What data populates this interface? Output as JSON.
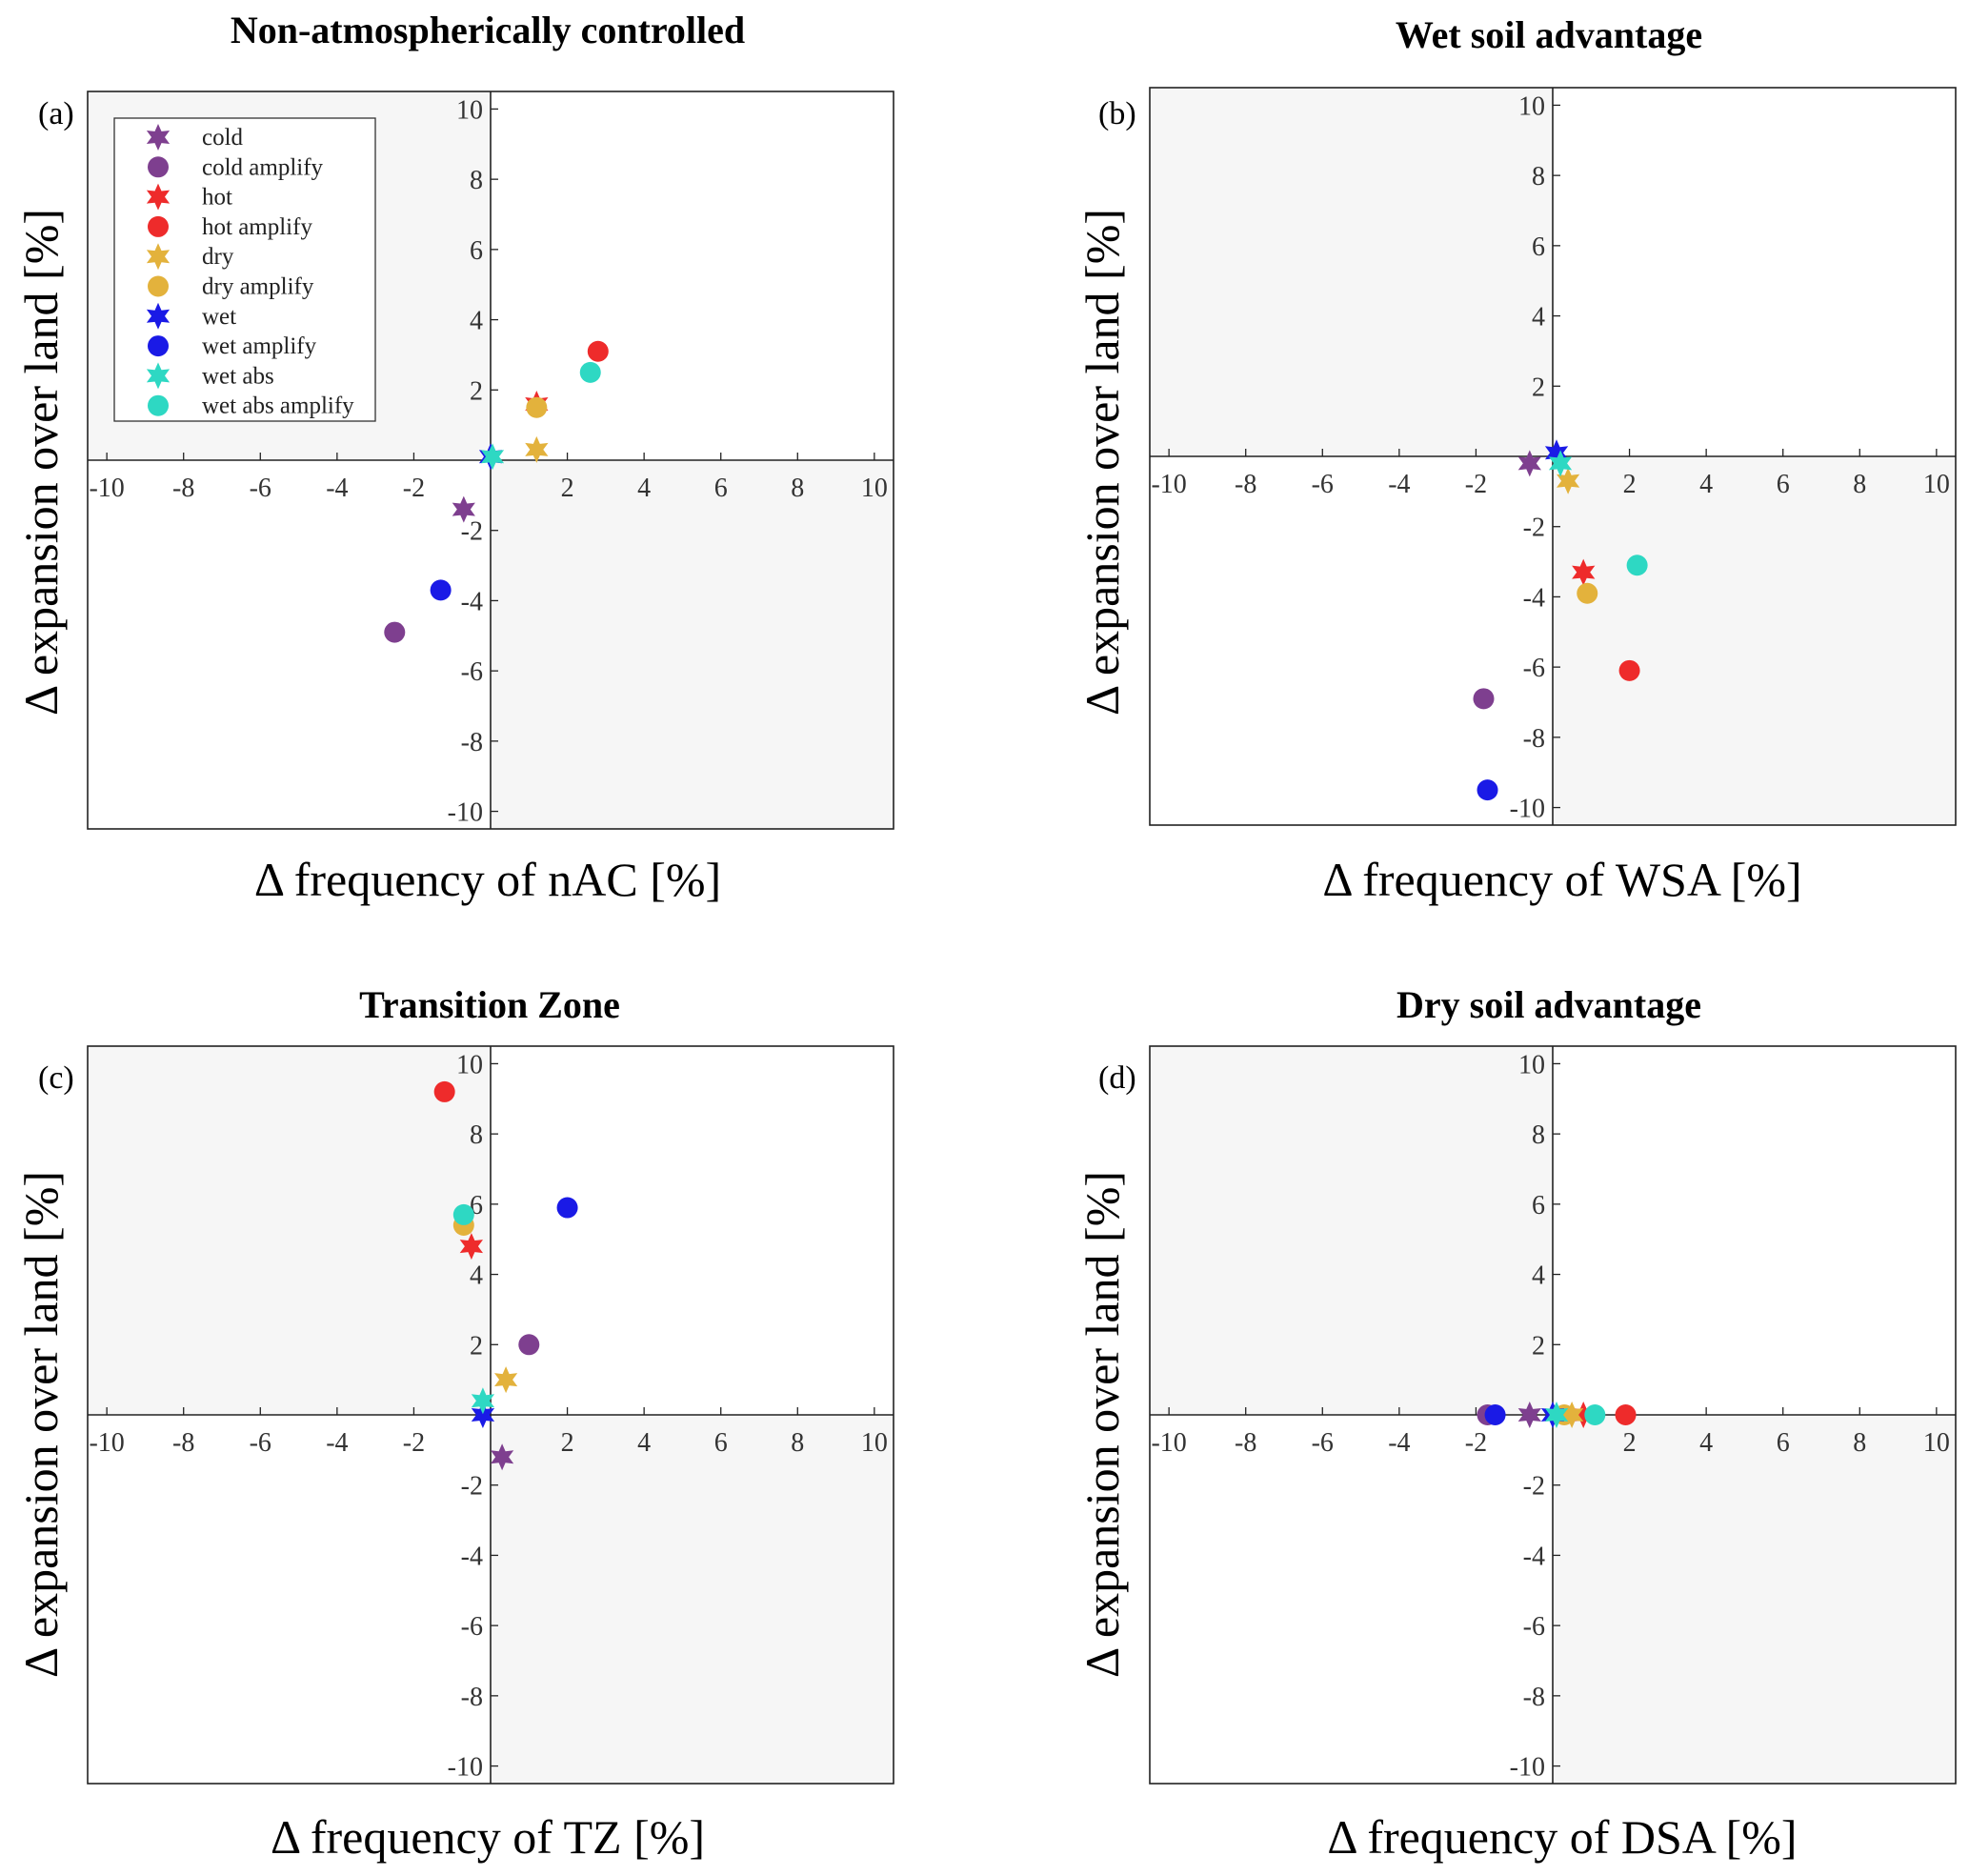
{
  "legend": [
    {
      "key": "cold",
      "label": "cold",
      "marker": "star",
      "color": "#7e3f8f"
    },
    {
      "key": "cold_amplify",
      "label": "cold amplify",
      "marker": "circle",
      "color": "#7e3f8f"
    },
    {
      "key": "hot",
      "label": "hot",
      "marker": "star",
      "color": "#ee2b2b"
    },
    {
      "key": "hot_amplify",
      "label": "hot  amplify",
      "marker": "circle",
      "color": "#ee2b2b"
    },
    {
      "key": "dry",
      "label": "dry",
      "marker": "star",
      "color": "#e3b23c"
    },
    {
      "key": "dry_amplify",
      "label": "dry  amplify",
      "marker": "circle",
      "color": "#e3b23c"
    },
    {
      "key": "wet",
      "label": "wet",
      "marker": "star",
      "color": "#1a1ae6"
    },
    {
      "key": "wet_amplify",
      "label": "wet  amplify",
      "marker": "circle",
      "color": "#1a1ae6"
    },
    {
      "key": "wet_abs",
      "label": "wet abs",
      "marker": "star",
      "color": "#2ed8c3"
    },
    {
      "key": "wet_abs_amplify",
      "label": "wet abs  amplify",
      "marker": "circle",
      "color": "#2ed8c3"
    }
  ],
  "chart_data": [
    {
      "type": "scatter",
      "panel": "(a)",
      "title": "Non-atmospherically controlled",
      "xlabel": "Δ frequency of nAC [%]",
      "ylabel": "Δ expansion over land [%]",
      "xlim": [
        -10.5,
        10.5
      ],
      "ylim": [
        -10.5,
        10.5
      ],
      "xticks": [
        -10,
        -8,
        -6,
        -4,
        -2,
        2,
        4,
        6,
        8,
        10
      ],
      "yticks": [
        -10,
        -8,
        -6,
        -4,
        -2,
        2,
        4,
        6,
        8,
        10
      ],
      "shaded_quadrants": [
        "top-left",
        "bottom-right"
      ],
      "legend_position": "top-left",
      "points": [
        {
          "series": "cold",
          "x": -0.7,
          "y": -1.4
        },
        {
          "series": "cold_amplify",
          "x": -2.5,
          "y": -4.9
        },
        {
          "series": "hot",
          "x": 1.2,
          "y": 1.6
        },
        {
          "series": "hot_amplify",
          "x": 2.8,
          "y": 3.1
        },
        {
          "series": "dry",
          "x": 1.2,
          "y": 0.3
        },
        {
          "series": "dry_amplify",
          "x": 1.2,
          "y": 1.5
        },
        {
          "series": "wet",
          "x": 0.0,
          "y": 0.1
        },
        {
          "series": "wet_amplify",
          "x": -1.3,
          "y": -3.7
        },
        {
          "series": "wet_abs",
          "x": 0.05,
          "y": 0.1
        },
        {
          "series": "wet_abs_amplify",
          "x": 2.6,
          "y": 2.5
        }
      ]
    },
    {
      "type": "scatter",
      "panel": "(b)",
      "title": "Wet soil advantage",
      "xlabel": "Δ frequency of WSA [%]",
      "ylabel": "Δ expansion over land [%]",
      "xlim": [
        -10.5,
        10.5
      ],
      "ylim": [
        -10.5,
        10.5
      ],
      "xticks": [
        -10,
        -8,
        -6,
        -4,
        -2,
        2,
        4,
        6,
        8,
        10
      ],
      "yticks": [
        -10,
        -8,
        -6,
        -4,
        -2,
        2,
        4,
        6,
        8,
        10
      ],
      "shaded_quadrants": [
        "top-left",
        "bottom-right"
      ],
      "points": [
        {
          "series": "cold",
          "x": -0.6,
          "y": -0.2
        },
        {
          "series": "cold_amplify",
          "x": -1.8,
          "y": -6.9
        },
        {
          "series": "hot",
          "x": 0.8,
          "y": -3.3
        },
        {
          "series": "hot_amplify",
          "x": 2.0,
          "y": -6.1
        },
        {
          "series": "dry",
          "x": 0.4,
          "y": -0.7
        },
        {
          "series": "dry_amplify",
          "x": 0.9,
          "y": -3.9
        },
        {
          "series": "wet",
          "x": 0.1,
          "y": 0.1
        },
        {
          "series": "wet_amplify",
          "x": -1.7,
          "y": -9.5
        },
        {
          "series": "wet_abs",
          "x": 0.2,
          "y": -0.2
        },
        {
          "series": "wet_abs_amplify",
          "x": 2.2,
          "y": -3.1
        }
      ]
    },
    {
      "type": "scatter",
      "panel": "(c)",
      "title": "Transition Zone",
      "xlabel": "Δ frequency of TZ [%]",
      "ylabel": "Δ expansion over land [%]",
      "xlim": [
        -10.5,
        10.5
      ],
      "ylim": [
        -10.5,
        10.5
      ],
      "xticks": [
        -10,
        -8,
        -6,
        -4,
        -2,
        2,
        4,
        6,
        8,
        10
      ],
      "yticks": [
        -10,
        -8,
        -6,
        -4,
        -2,
        2,
        4,
        6,
        8,
        10
      ],
      "shaded_quadrants": [
        "top-left",
        "bottom-right"
      ],
      "points": [
        {
          "series": "cold",
          "x": 0.3,
          "y": -1.2
        },
        {
          "series": "cold_amplify",
          "x": 1.0,
          "y": 2.0
        },
        {
          "series": "hot",
          "x": -0.5,
          "y": 4.8
        },
        {
          "series": "hot_amplify",
          "x": -1.2,
          "y": 9.2
        },
        {
          "series": "dry",
          "x": 0.4,
          "y": 1.0
        },
        {
          "series": "dry_amplify",
          "x": -0.7,
          "y": 5.4
        },
        {
          "series": "wet",
          "x": -0.2,
          "y": 0.0
        },
        {
          "series": "wet_amplify",
          "x": 2.0,
          "y": 5.9
        },
        {
          "series": "wet_abs",
          "x": -0.2,
          "y": 0.4
        },
        {
          "series": "wet_abs_amplify",
          "x": -0.7,
          "y": 5.7
        }
      ]
    },
    {
      "type": "scatter",
      "panel": "(d)",
      "title": "Dry soil advantage",
      "xlabel": "Δ frequency of DSA [%]",
      "ylabel": "Δ expansion over land [%]",
      "xlim": [
        -10.5,
        10.5
      ],
      "ylim": [
        -10.5,
        10.5
      ],
      "xticks": [
        -10,
        -8,
        -6,
        -4,
        -2,
        2,
        4,
        6,
        8,
        10
      ],
      "yticks": [
        -10,
        -8,
        -6,
        -4,
        -2,
        2,
        4,
        6,
        8,
        10
      ],
      "shaded_quadrants": [
        "top-left",
        "bottom-right"
      ],
      "points": [
        {
          "series": "cold",
          "x": -0.6,
          "y": 0.0
        },
        {
          "series": "cold_amplify",
          "x": -1.7,
          "y": 0.0
        },
        {
          "series": "hot",
          "x": 0.8,
          "y": 0.0
        },
        {
          "series": "hot_amplify",
          "x": 1.9,
          "y": 0.0
        },
        {
          "series": "dry",
          "x": 0.5,
          "y": 0.0
        },
        {
          "series": "dry_amplify",
          "x": 0.3,
          "y": 0.0
        },
        {
          "series": "wet",
          "x": 0.0,
          "y": 0.0
        },
        {
          "series": "wet_amplify",
          "x": -1.5,
          "y": 0.0
        },
        {
          "series": "wet_abs",
          "x": 0.1,
          "y": 0.0
        },
        {
          "series": "wet_abs_amplify",
          "x": 1.1,
          "y": 0.0
        }
      ]
    }
  ]
}
